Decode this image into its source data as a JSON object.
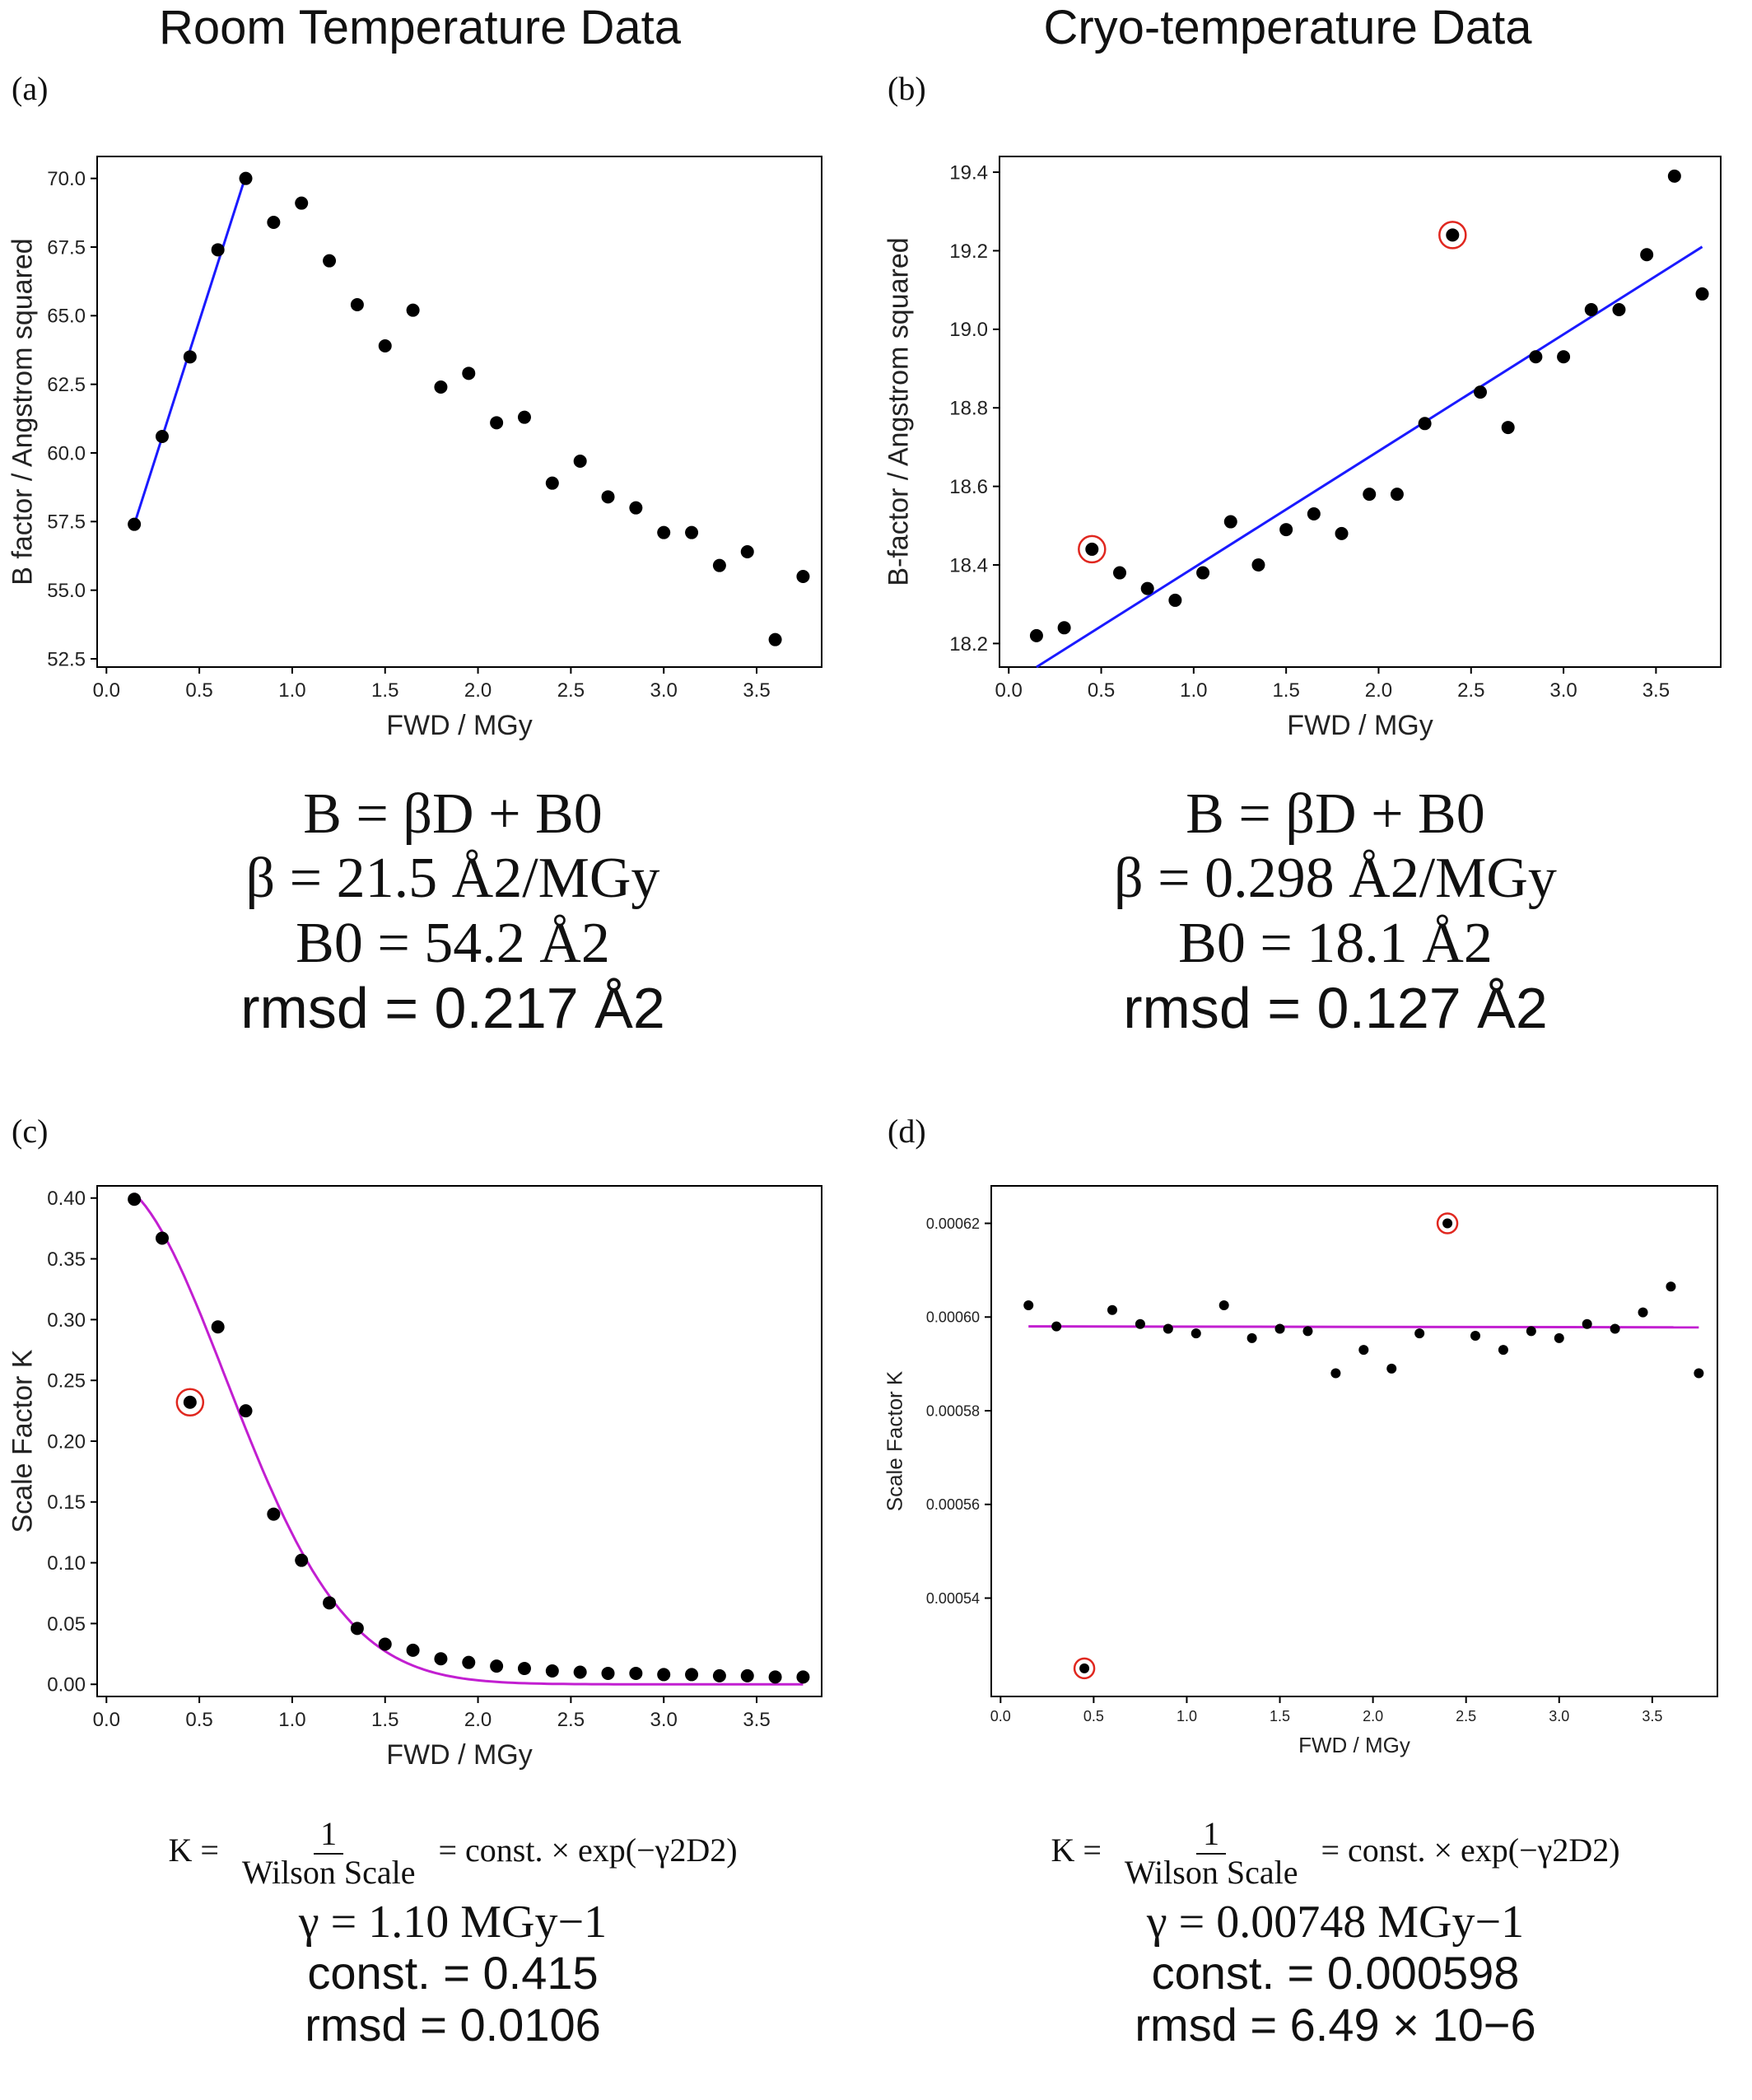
{
  "columns": {
    "left_title": "Room Temperature Data",
    "right_title": "Cryo-temperature Data"
  },
  "panels": {
    "a": {
      "label": "(a)",
      "eq1": "B = βD + B0",
      "eq2": "β = 21.5 Å2/MGy",
      "eq3": "B0 = 54.2 Å2",
      "eq4": "rmsd = 0.217 Å2"
    },
    "b": {
      "label": "(b)",
      "eq1": "B = βD + B0",
      "eq2": "β = 0.298 Å2/MGy",
      "eq3": "B0 = 18.1 Å2",
      "eq4": "rmsd = 0.127 Å2"
    },
    "c": {
      "label": "(c)",
      "eq_lhs": "K =",
      "eq_num": "1",
      "eq_den": "Wilson Scale",
      "eq_rhs": "= const. × exp(−γ2D2)",
      "eq2": "γ = 1.10 MGy−1",
      "eq3": "const. = 0.415",
      "eq4": "rmsd = 0.0106"
    },
    "d": {
      "label": "(d)",
      "eq_lhs": "K =",
      "eq_num": "1",
      "eq_den": "Wilson Scale",
      "eq_rhs": "= const. × exp(−γ2D2)",
      "eq2": "γ = 0.00748 MGy−1",
      "eq3": "const. = 0.000598",
      "eq4": "rmsd = 6.49 × 10−6"
    }
  },
  "colors": {
    "point": "#000000",
    "fit_linear": "#1a1aff",
    "fit_exp": "#c21fd1",
    "outlier_ring": "#e0271f"
  },
  "chart_data": [
    {
      "id": "a",
      "type": "scatter",
      "xlabel": "FWD / MGy",
      "ylabel": "B factor / Angstrom squared",
      "xlim": [
        -0.05,
        3.85
      ],
      "ylim": [
        52.2,
        70.8
      ],
      "xticks": [
        "0.0",
        "0.5",
        "1.0",
        "1.5",
        "2.0",
        "2.5",
        "3.0",
        "3.5"
      ],
      "xtick_values": [
        0,
        0.5,
        1,
        1.5,
        2,
        2.5,
        3,
        3.5
      ],
      "yticks": [
        "52.5",
        "55.0",
        "57.5",
        "60.0",
        "62.5",
        "65.0",
        "67.5",
        "70.0"
      ],
      "ytick_values": [
        52.5,
        55,
        57.5,
        60,
        62.5,
        65,
        67.5,
        70
      ],
      "x": [
        0.15,
        0.3,
        0.45,
        0.6,
        0.75,
        0.9,
        1.05,
        1.2,
        1.35,
        1.5,
        1.65,
        1.8,
        1.95,
        2.1,
        2.25,
        2.4,
        2.55,
        2.7,
        2.85,
        3.0,
        3.15,
        3.3,
        3.45,
        3.6,
        3.75
      ],
      "y": [
        57.4,
        60.6,
        63.5,
        67.4,
        70.0,
        68.4,
        69.1,
        67.0,
        65.4,
        63.9,
        65.2,
        62.4,
        62.9,
        61.1,
        61.3,
        58.9,
        59.7,
        58.4,
        58.0,
        57.1,
        57.1,
        55.9,
        56.4,
        53.2,
        55.5
      ],
      "fit": {
        "type": "line",
        "x": [
          0.15,
          0.75
        ],
        "y": [
          57.4,
          70.1
        ]
      },
      "outliers": []
    },
    {
      "id": "b",
      "type": "scatter",
      "xlabel": "FWD / MGy",
      "ylabel": "B-factor / Angstrom squared",
      "xlim": [
        -0.05,
        3.85
      ],
      "ylim": [
        18.14,
        19.44
      ],
      "xticks": [
        "0.0",
        "0.5",
        "1.0",
        "1.5",
        "2.0",
        "2.5",
        "3.0",
        "3.5"
      ],
      "xtick_values": [
        0,
        0.5,
        1,
        1.5,
        2,
        2.5,
        3,
        3.5
      ],
      "yticks": [
        "18.2",
        "18.4",
        "18.6",
        "18.8",
        "19.0",
        "19.2",
        "19.4"
      ],
      "ytick_values": [
        18.2,
        18.4,
        18.6,
        18.8,
        19.0,
        19.2,
        19.4
      ],
      "x": [
        0.15,
        0.3,
        0.45,
        0.6,
        0.75,
        0.9,
        1.05,
        1.2,
        1.35,
        1.5,
        1.65,
        1.8,
        1.95,
        2.1,
        2.25,
        2.4,
        2.55,
        2.7,
        2.85,
        3.0,
        3.15,
        3.3,
        3.45,
        3.6,
        3.75
      ],
      "y": [
        18.22,
        18.24,
        18.44,
        18.38,
        18.34,
        18.31,
        18.38,
        18.51,
        18.4,
        18.49,
        18.53,
        18.48,
        18.58,
        18.58,
        18.76,
        19.24,
        18.84,
        18.75,
        18.93,
        18.93,
        19.05,
        19.05,
        19.19,
        19.39,
        19.09
      ],
      "fit": {
        "type": "line",
        "x": [
          0.15,
          3.75
        ],
        "y": [
          18.14,
          19.21
        ]
      },
      "outliers": [
        2,
        15
      ]
    },
    {
      "id": "c",
      "type": "scatter",
      "xlabel": "FWD / MGy",
      "ylabel": "Scale Factor K",
      "xlim": [
        -0.05,
        3.85
      ],
      "ylim": [
        -0.01,
        0.41
      ],
      "xticks": [
        "0.0",
        "0.5",
        "1.0",
        "1.5",
        "2.0",
        "2.5",
        "3.0",
        "3.5"
      ],
      "xtick_values": [
        0,
        0.5,
        1,
        1.5,
        2,
        2.5,
        3,
        3.5
      ],
      "yticks": [
        "0.00",
        "0.05",
        "0.10",
        "0.15",
        "0.20",
        "0.25",
        "0.30",
        "0.35",
        "0.40"
      ],
      "ytick_values": [
        0,
        0.05,
        0.1,
        0.15,
        0.2,
        0.25,
        0.3,
        0.35,
        0.4
      ],
      "x": [
        0.15,
        0.3,
        0.45,
        0.6,
        0.75,
        0.9,
        1.05,
        1.2,
        1.35,
        1.5,
        1.65,
        1.8,
        1.95,
        2.1,
        2.25,
        2.4,
        2.55,
        2.7,
        2.85,
        3.0,
        3.15,
        3.3,
        3.45,
        3.6,
        3.75
      ],
      "y": [
        0.399,
        0.367,
        0.232,
        0.294,
        0.225,
        0.14,
        0.102,
        0.067,
        0.046,
        0.033,
        0.028,
        0.021,
        0.018,
        0.015,
        0.013,
        0.011,
        0.01,
        0.009,
        0.009,
        0.008,
        0.008,
        0.007,
        0.007,
        0.006,
        0.006
      ],
      "fit": {
        "type": "exp_gauss",
        "const": 0.415,
        "gamma": 1.1,
        "x_range": [
          0.15,
          3.75
        ]
      },
      "outliers": [
        2
      ]
    },
    {
      "id": "d",
      "type": "scatter",
      "xlabel": "FWD / MGy",
      "ylabel": "Scale Factor K",
      "xlim": [
        -0.05,
        3.85
      ],
      "ylim": [
        0.000519,
        0.000628
      ],
      "xticks": [
        "0.0",
        "0.5",
        "1.0",
        "1.5",
        "2.0",
        "2.5",
        "3.0",
        "3.5"
      ],
      "xtick_values": [
        0,
        0.5,
        1,
        1.5,
        2,
        2.5,
        3,
        3.5
      ],
      "yticks": [
        "0.00054",
        "0.00056",
        "0.00058",
        "0.00060",
        "0.00062"
      ],
      "ytick_values": [
        0.00054,
        0.00056,
        0.00058,
        0.0006,
        0.00062
      ],
      "x": [
        0.15,
        0.3,
        0.45,
        0.6,
        0.75,
        0.9,
        1.05,
        1.2,
        1.35,
        1.5,
        1.65,
        1.8,
        1.95,
        2.1,
        2.25,
        2.4,
        2.55,
        2.7,
        2.85,
        3.0,
        3.15,
        3.3,
        3.45,
        3.6,
        3.75
      ],
      "y": [
        0.0006025,
        0.000598,
        0.000525,
        0.0006015,
        0.0005985,
        0.0005975,
        0.0005965,
        0.0006025,
        0.0005955,
        0.0005975,
        0.000597,
        0.000588,
        0.000593,
        0.000589,
        0.0005965,
        0.00062,
        0.000596,
        0.000593,
        0.000597,
        0.0005955,
        0.0005985,
        0.0005975,
        0.000601,
        0.0006065,
        0.000588
      ],
      "fit": {
        "type": "line",
        "x": [
          0.15,
          3.75
        ],
        "y": [
          0.000598,
          0.0005978
        ]
      },
      "outliers": [
        2,
        15
      ]
    }
  ]
}
